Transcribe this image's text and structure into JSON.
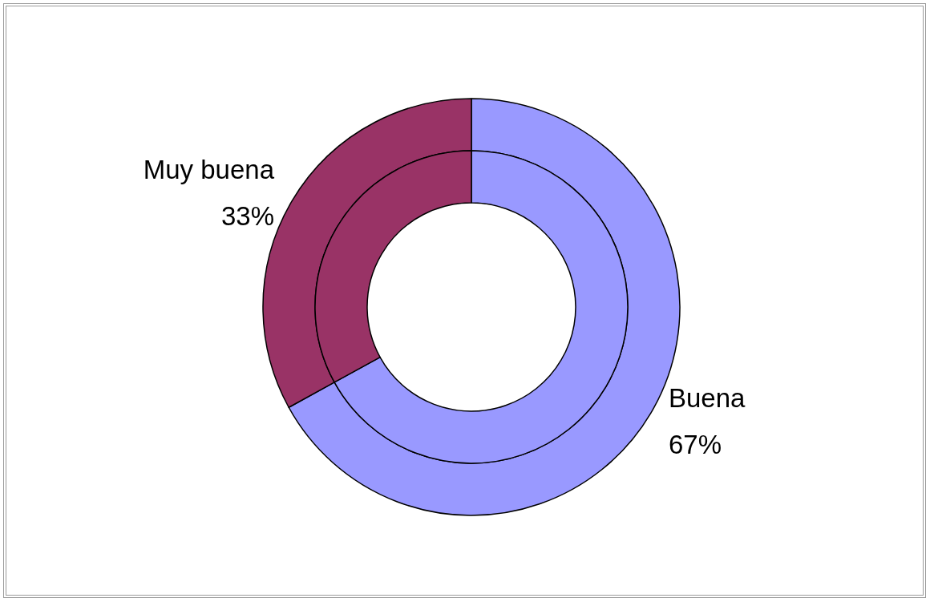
{
  "chart_data": {
    "type": "donut",
    "categories": [
      "Buena",
      "Muy buena"
    ],
    "series": [
      {
        "values": [
          67,
          33
        ],
        "colors": [
          "#9999ff",
          "#993366"
        ],
        "value_labels": [
          "67%",
          "33%"
        ]
      },
      {
        "values": [
          67,
          33
        ],
        "colors": [
          "#9999ff",
          "#993366"
        ]
      }
    ]
  }
}
